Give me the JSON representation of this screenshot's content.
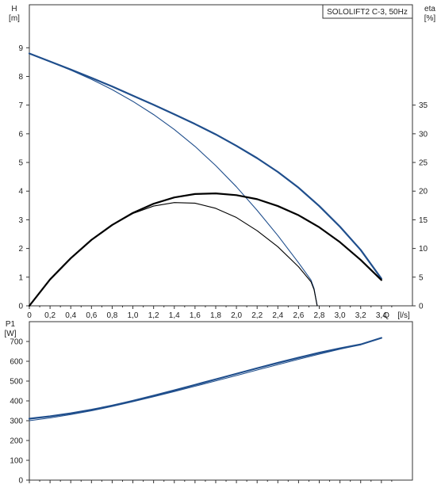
{
  "chart_data": [
    {
      "type": "line",
      "title": "SOLOLIFT2 C-3, 50Hz",
      "y_label": "H",
      "y_unit": "[m]",
      "y2_label": "eta",
      "y2_unit": "[%]",
      "x_label": "Q",
      "x_unit": "[l/s]",
      "xlim": [
        0,
        3.7
      ],
      "ylim": [
        0,
        10.5
      ],
      "y2lim": [
        0,
        52.5
      ],
      "grid": false,
      "x_ticks": [
        "0",
        "0,2",
        "0,4",
        "0,6",
        "0,8",
        "1,0",
        "1,2",
        "1,4",
        "1,6",
        "1,8",
        "2,0",
        "2,2",
        "2,4",
        "2,6",
        "2,8",
        "3,0",
        "3,2",
        "3,4"
      ],
      "y_ticks": [
        "0",
        "1",
        "2",
        "3",
        "4",
        "5",
        "6",
        "7",
        "8",
        "9"
      ],
      "y2_ticks": [
        "0",
        "5",
        "10",
        "15",
        "20",
        "25",
        "30",
        "35"
      ],
      "series": [
        {
          "axis": "left",
          "color": "#1f4e8c",
          "width": 2.2,
          "points": [
            [
              0,
              8.8
            ],
            [
              0.2,
              8.52
            ],
            [
              0.4,
              8.24
            ],
            [
              0.6,
              7.95
            ],
            [
              0.8,
              7.65
            ],
            [
              1.0,
              7.33
            ],
            [
              1.2,
              7.01
            ],
            [
              1.4,
              6.68
            ],
            [
              1.6,
              6.34
            ],
            [
              1.8,
              5.98
            ],
            [
              2.0,
              5.58
            ],
            [
              2.2,
              5.15
            ],
            [
              2.4,
              4.67
            ],
            [
              2.6,
              4.12
            ],
            [
              2.8,
              3.48
            ],
            [
              3.0,
              2.76
            ],
            [
              3.2,
              1.95
            ],
            [
              3.4,
              0.95
            ]
          ]
        },
        {
          "axis": "left",
          "color": "#1f4e8c",
          "width": 1.1,
          "points": [
            [
              0,
              8.8
            ],
            [
              0.2,
              8.52
            ],
            [
              0.4,
              8.22
            ],
            [
              0.6,
              7.9
            ],
            [
              0.8,
              7.54
            ],
            [
              1.0,
              7.13
            ],
            [
              1.2,
              6.67
            ],
            [
              1.4,
              6.15
            ],
            [
              1.6,
              5.56
            ],
            [
              1.8,
              4.89
            ],
            [
              2.0,
              4.15
            ],
            [
              2.2,
              3.33
            ],
            [
              2.4,
              2.45
            ],
            [
              2.6,
              1.5
            ],
            [
              2.72,
              0.9
            ],
            [
              2.75,
              0.6
            ],
            [
              2.78,
              0
            ]
          ]
        },
        {
          "axis": "right",
          "color": "#000000",
          "width": 2.2,
          "points": [
            [
              0,
              0
            ],
            [
              0.2,
              4.6
            ],
            [
              0.4,
              8.3
            ],
            [
              0.6,
              11.5
            ],
            [
              0.8,
              14.1
            ],
            [
              1.0,
              16.2
            ],
            [
              1.2,
              17.8
            ],
            [
              1.4,
              18.9
            ],
            [
              1.6,
              19.5
            ],
            [
              1.8,
              19.6
            ],
            [
              2.0,
              19.3
            ],
            [
              2.2,
              18.6
            ],
            [
              2.4,
              17.4
            ],
            [
              2.6,
              15.8
            ],
            [
              2.8,
              13.7
            ],
            [
              3.0,
              11.1
            ],
            [
              3.2,
              8.0
            ],
            [
              3.4,
              4.5
            ]
          ]
        },
        {
          "axis": "right",
          "color": "#000000",
          "width": 1.1,
          "points": [
            [
              0,
              0
            ],
            [
              0.2,
              4.6
            ],
            [
              0.4,
              8.3
            ],
            [
              0.6,
              11.5
            ],
            [
              0.8,
              14.1
            ],
            [
              1.0,
              16.1
            ],
            [
              1.2,
              17.4
            ],
            [
              1.4,
              18.0
            ],
            [
              1.6,
              17.9
            ],
            [
              1.8,
              17.0
            ],
            [
              2.0,
              15.4
            ],
            [
              2.2,
              13.1
            ],
            [
              2.4,
              10.3
            ],
            [
              2.6,
              6.8
            ],
            [
              2.72,
              4.2
            ],
            [
              2.75,
              2.8
            ],
            [
              2.78,
              0
            ]
          ]
        }
      ]
    },
    {
      "type": "line",
      "y_label": "P1",
      "y_unit": "[W]",
      "xlim": [
        0,
        3.7
      ],
      "ylim": [
        0,
        800
      ],
      "grid": false,
      "y_ticks": [
        "0",
        "100",
        "200",
        "300",
        "400",
        "500",
        "600",
        "700"
      ],
      "series": [
        {
          "color": "#1f4e8c",
          "width": 2.2,
          "points": [
            [
              0,
              310
            ],
            [
              0.2,
              322
            ],
            [
              0.4,
              337
            ],
            [
              0.6,
              355
            ],
            [
              0.8,
              376
            ],
            [
              1.0,
              400
            ],
            [
              1.2,
              426
            ],
            [
              1.4,
              453
            ],
            [
              1.6,
              481
            ],
            [
              1.8,
              509
            ],
            [
              2.0,
              537
            ],
            [
              2.2,
              565
            ],
            [
              2.4,
              592
            ],
            [
              2.6,
              618
            ],
            [
              2.8,
              643
            ],
            [
              3.0,
              665
            ],
            [
              3.2,
              685
            ],
            [
              3.4,
              718
            ]
          ]
        },
        {
          "color": "#1f4e8c",
          "width": 1.1,
          "points": [
            [
              0,
              300
            ],
            [
              0.2,
              314
            ],
            [
              0.4,
              331
            ],
            [
              0.6,
              350
            ],
            [
              0.8,
              372
            ],
            [
              1.0,
              396
            ],
            [
              1.2,
              421
            ],
            [
              1.4,
              447
            ],
            [
              1.6,
              474
            ],
            [
              1.8,
              501
            ],
            [
              2.0,
              528
            ],
            [
              2.2,
              556
            ],
            [
              2.4,
              583
            ],
            [
              2.6,
              610
            ],
            [
              2.8,
              636
            ],
            [
              3.0,
              661
            ],
            [
              3.2,
              684
            ],
            [
              3.4,
              718
            ]
          ]
        }
      ]
    }
  ]
}
